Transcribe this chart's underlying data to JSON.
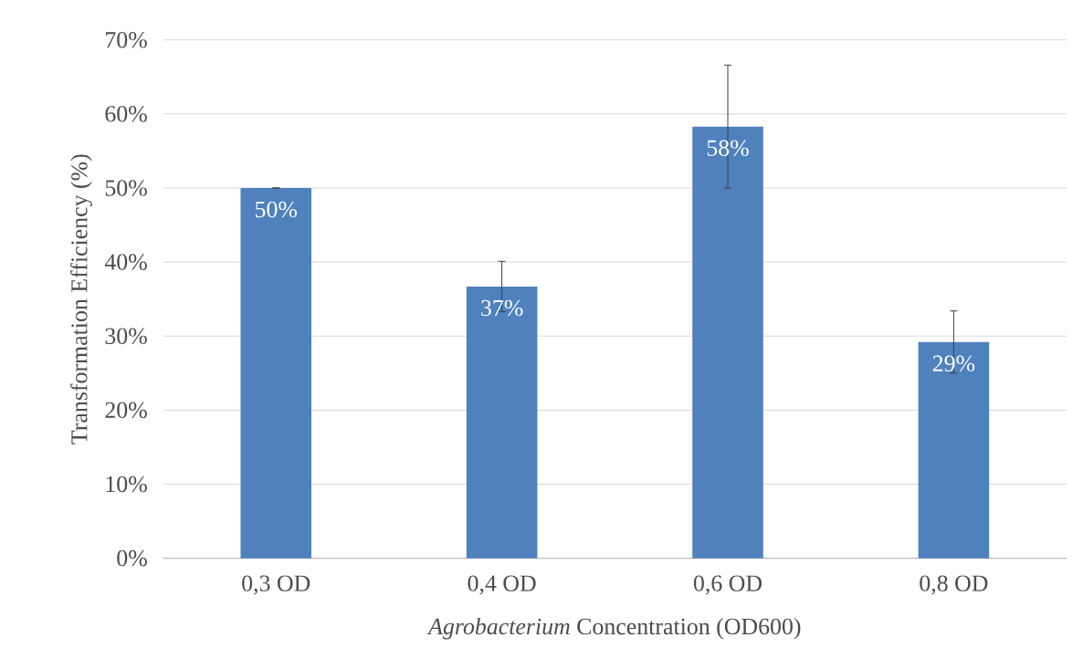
{
  "chart_data": {
    "type": "bar",
    "xlabel": "*Agrobacterium* Concentration (OD600)",
    "ylabel": "Transformation Efficiency (%)",
    "categories": [
      "0,3 OD",
      "0,4 OD",
      "0,6 OD",
      "0,8 OD"
    ],
    "values": [
      50,
      36.7,
      58.3,
      29.2
    ],
    "errors": [
      0,
      3.4,
      8.3,
      4.2
    ],
    "value_labels": [
      "50%",
      "37%",
      "58%",
      "29%"
    ],
    "color": "#4f81bd",
    "ylim": [
      0,
      70
    ],
    "yticks": [
      {
        "value": 0,
        "label": "0%"
      },
      {
        "value": 10,
        "label": "10%"
      },
      {
        "value": 20,
        "label": "20%"
      },
      {
        "value": 30,
        "label": "30%"
      },
      {
        "value": 40,
        "label": "40%"
      },
      {
        "value": 50,
        "label": "50%"
      },
      {
        "value": 60,
        "label": "60%"
      },
      {
        "value": 70,
        "label": "70%"
      }
    ],
    "grid": "y"
  }
}
